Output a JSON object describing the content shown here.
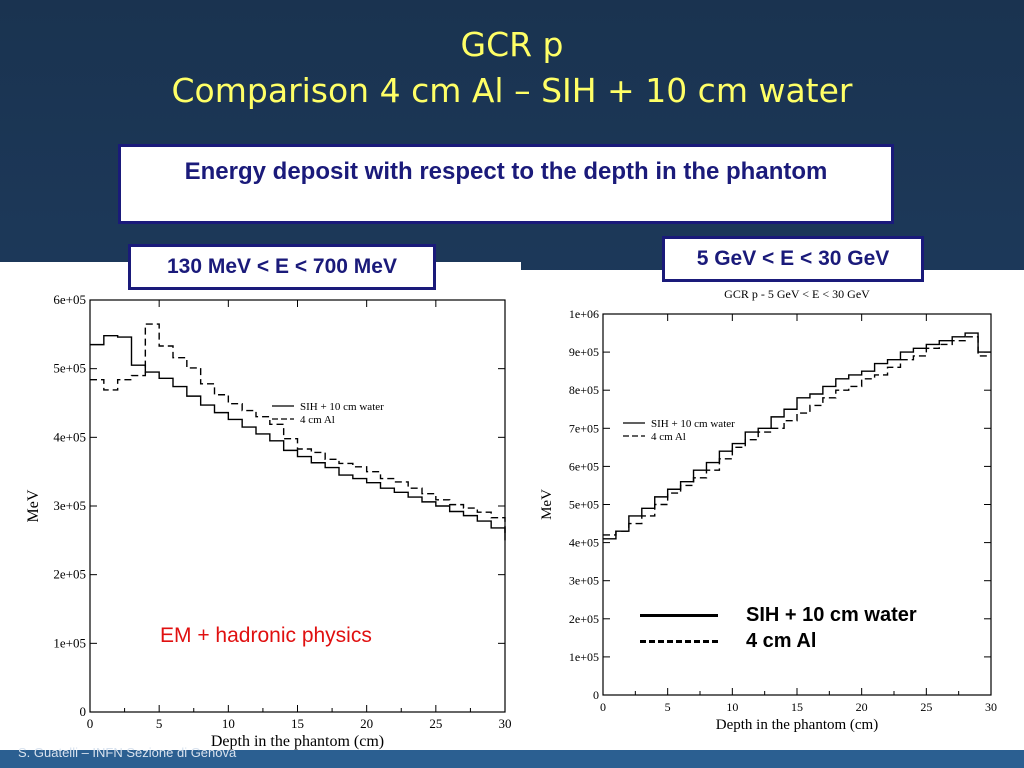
{
  "slide": {
    "title_line1": "GCR p",
    "title_line2": "Comparison 4 cm Al – SIH + 10 cm water",
    "subtitle": "Energy deposit  with respect to the depth in the phantom",
    "footer": "S. Guatelli – INFN Sezione di Genova",
    "colors": {
      "title": "#ffff66",
      "box_border": "#1a1a7a",
      "annotation": "#e01010"
    }
  },
  "panels": [
    {
      "range_label": "130 MeV < E < 700 MeV",
      "annotation": "EM + hadronic physics"
    },
    {
      "range_label": "5 GeV < E < 30 GeV",
      "legend_overlay": [
        {
          "label": "SIH + 10 cm water",
          "style": "solid"
        },
        {
          "label": "4 cm Al",
          "style": "dashed"
        }
      ]
    }
  ],
  "chart_data": [
    {
      "type": "line",
      "title": "",
      "xlabel": "Depth in the phantom (cm)",
      "ylabel": "MeV",
      "xlim": [
        0,
        30
      ],
      "ylim": [
        0,
        600000
      ],
      "xticks": [
        "0",
        "5",
        "10",
        "15",
        "20",
        "25",
        "30"
      ],
      "yticks": [
        "0",
        "1e+05",
        "2e+05",
        "3e+05",
        "4e+05",
        "5e+05",
        "6e+05"
      ],
      "legend_position": "top-right",
      "step": true,
      "x_edges": [
        0,
        1,
        2,
        3,
        4,
        5,
        6,
        7,
        8,
        9,
        10,
        11,
        12,
        13,
        14,
        15,
        16,
        17,
        18,
        19,
        20,
        21,
        22,
        23,
        24,
        25,
        26,
        27,
        28,
        29,
        30
      ],
      "series": [
        {
          "name": "SIH + 10 cm water",
          "style": "solid",
          "values": [
            535000,
            548000,
            546000,
            505000,
            495000,
            486000,
            474000,
            460000,
            447000,
            436000,
            426000,
            415000,
            405000,
            395000,
            381000,
            372000,
            363000,
            356000,
            345000,
            340000,
            334000,
            326000,
            320000,
            313000,
            306000,
            300000,
            292000,
            286000,
            278000,
            268000,
            250000
          ]
        },
        {
          "name": "4 cm Al",
          "style": "dashed",
          "values": [
            484000,
            469000,
            484000,
            490000,
            565000,
            533000,
            516000,
            501000,
            478000,
            462000,
            449000,
            439000,
            430000,
            419000,
            398000,
            383000,
            378000,
            368000,
            362000,
            357000,
            350000,
            340000,
            335000,
            326000,
            318000,
            309000,
            302000,
            297000,
            291000,
            283000,
            260000
          ]
        }
      ]
    },
    {
      "type": "line",
      "title": "GCR p - 5 GeV < E < 30 GeV",
      "xlabel": "Depth in the phantom (cm)",
      "ylabel": "MeV",
      "xlim": [
        0,
        30
      ],
      "ylim": [
        0,
        1000000
      ],
      "xticks": [
        "0",
        "5",
        "10",
        "15",
        "20",
        "25",
        "30"
      ],
      "yticks": [
        "0",
        "1e+05",
        "2e+05",
        "3e+05",
        "4e+05",
        "5e+05",
        "6e+05",
        "7e+05",
        "8e+05",
        "9e+05",
        "1e+06"
      ],
      "legend_position": "top-left",
      "step": true,
      "x_edges": [
        0,
        1,
        2,
        3,
        4,
        5,
        6,
        7,
        8,
        9,
        10,
        11,
        12,
        13,
        14,
        15,
        16,
        17,
        18,
        19,
        20,
        21,
        22,
        23,
        24,
        25,
        26,
        27,
        28,
        29,
        30
      ],
      "series": [
        {
          "name": "SIH + 10 cm water",
          "style": "solid",
          "values": [
            410000,
            430000,
            470000,
            490000,
            520000,
            540000,
            560000,
            590000,
            610000,
            640000,
            660000,
            690000,
            700000,
            730000,
            750000,
            780000,
            790000,
            810000,
            830000,
            840000,
            850000,
            870000,
            880000,
            900000,
            910000,
            920000,
            930000,
            940000,
            950000,
            900000,
            900000
          ]
        },
        {
          "name": "4 cm Al",
          "style": "dashed",
          "values": [
            420000,
            430000,
            450000,
            470000,
            500000,
            530000,
            550000,
            570000,
            590000,
            620000,
            650000,
            670000,
            690000,
            700000,
            720000,
            740000,
            760000,
            780000,
            800000,
            810000,
            830000,
            840000,
            860000,
            880000,
            890000,
            910000,
            920000,
            930000,
            940000,
            890000,
            890000
          ]
        }
      ]
    }
  ]
}
